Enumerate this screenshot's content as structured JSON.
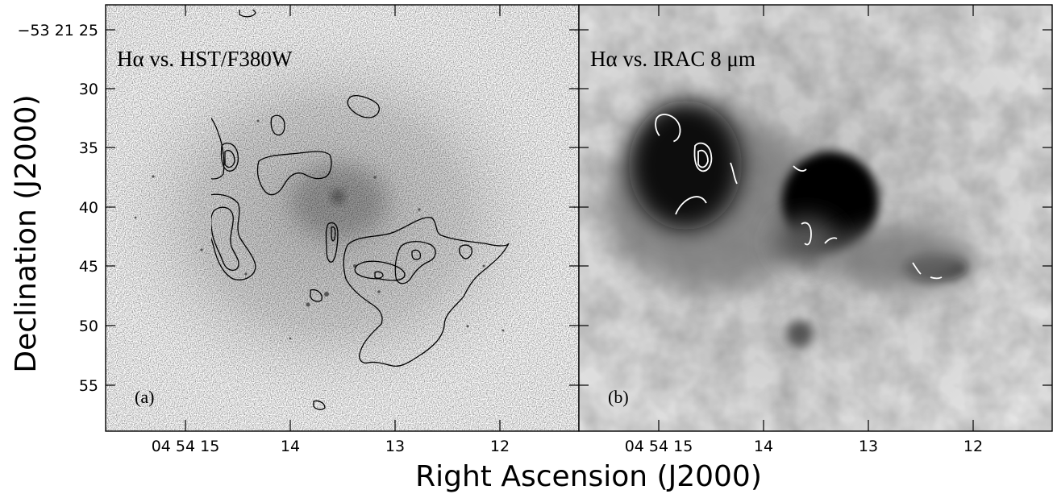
{
  "figure": {
    "y_axis_label": "Declination (J2000)",
    "x_axis_label": "Right Ascension (J2000)",
    "y_tick_labels": [
      "−53 21 25",
      "30",
      "35",
      "40",
      "45",
      "50",
      "55"
    ],
    "x_tick_labels": [
      "04 54 15",
      "14",
      "13",
      "12"
    ],
    "panels": [
      {
        "title": "Hα vs. HST/F380W",
        "letter": "(a)",
        "style": "light greyscale optical image with black Hα contours"
      },
      {
        "title": "Hα vs. IRAC 8  μm",
        "letter": "(b)",
        "style": "dark greyscale infrared image with black and white Hα contours"
      }
    ],
    "colors": {
      "axis": "#000000",
      "contour_dark": "#000000",
      "contour_light": "#ffffff",
      "background": "#ffffff"
    }
  }
}
